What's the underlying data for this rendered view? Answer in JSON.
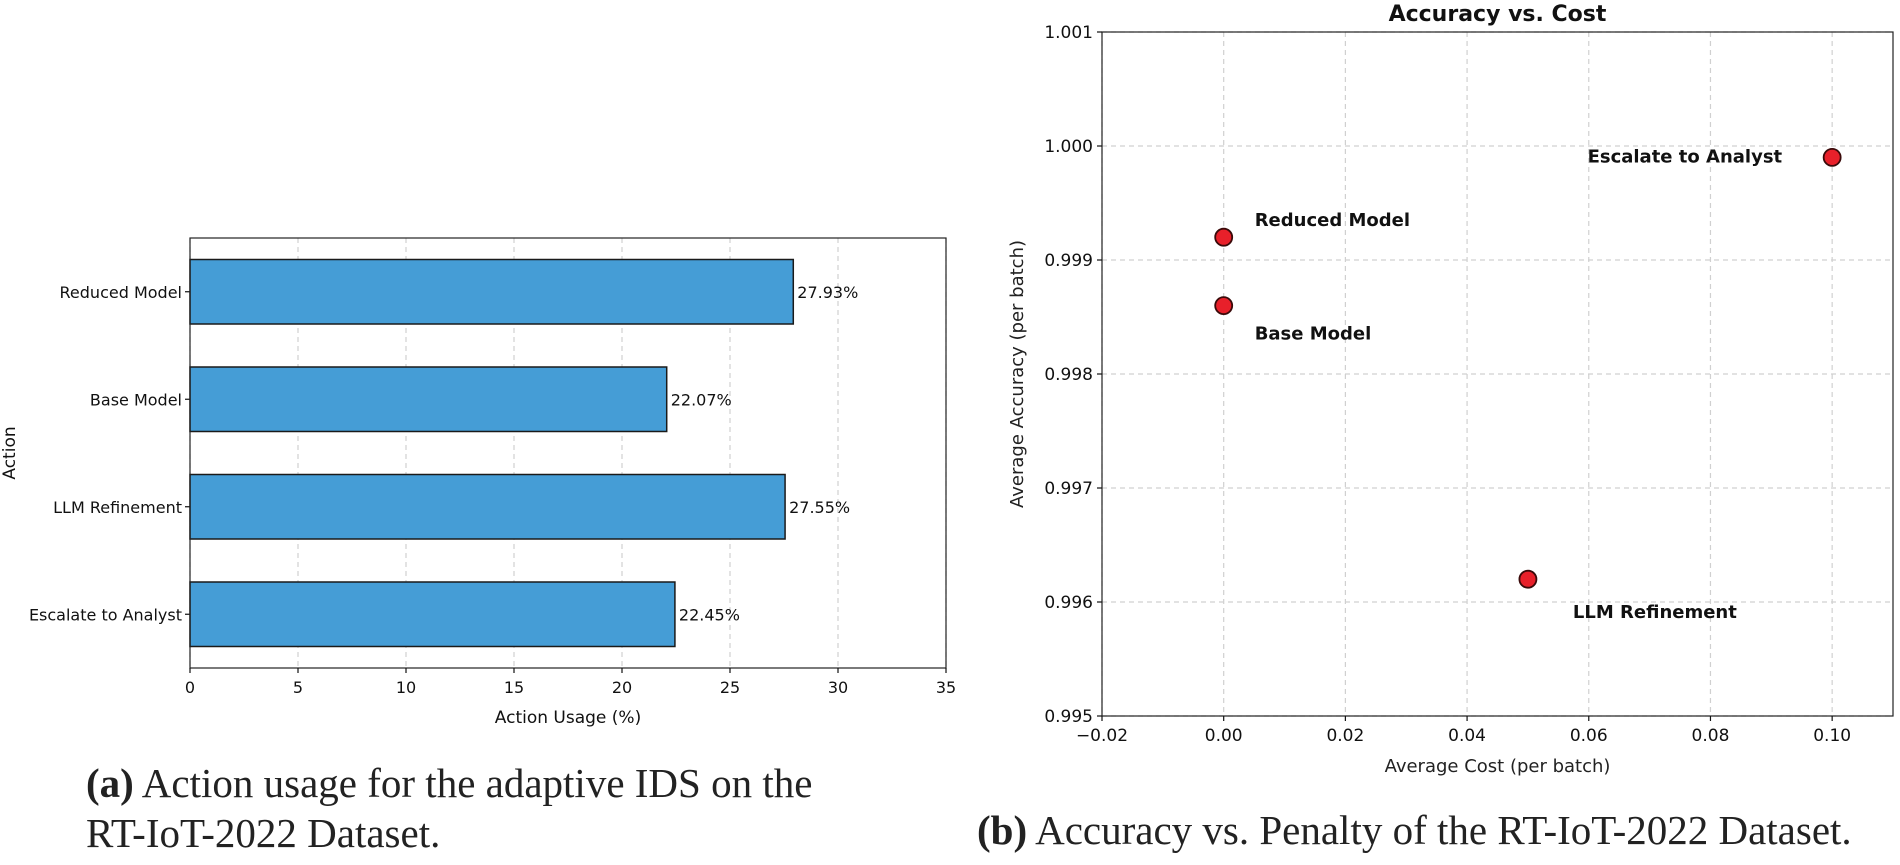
{
  "chart_data": [
    {
      "type": "bar",
      "orientation": "horizontal",
      "title": "",
      "xlabel": "Action Usage (%)",
      "ylabel": "Action",
      "categories": [
        "Reduced Model",
        "Base Model",
        "LLM Refinement",
        "Escalate to Analyst"
      ],
      "values": [
        27.93,
        22.07,
        27.55,
        22.45
      ],
      "value_labels": [
        "27.93%",
        "22.07%",
        "27.55%",
        "22.45%"
      ],
      "xlim": [
        0,
        35
      ],
      "xticks": [
        0,
        5,
        10,
        15,
        20,
        25,
        30,
        35
      ],
      "xtick_labels": [
        "0",
        "5",
        "10",
        "15",
        "20",
        "25",
        "30",
        "35"
      ],
      "grid": "x dashed",
      "bar_color": "#459dd6"
    },
    {
      "type": "scatter",
      "title": "Accuracy vs. Cost",
      "xlabel": "Average Cost (per batch)",
      "ylabel": "Average Accuracy (per batch)",
      "points": [
        {
          "label": "Reduced Model",
          "x": 0.0,
          "y": 0.9992
        },
        {
          "label": "Base Model",
          "x": 0.0,
          "y": 0.9986
        },
        {
          "label": "LLM Refinement",
          "x": 0.05,
          "y": 0.9962
        },
        {
          "label": "Escalate to Analyst",
          "x": 0.1,
          "y": 0.9999
        }
      ],
      "xlim": [
        -0.02,
        0.11
      ],
      "ylim": [
        0.995,
        1.001
      ],
      "xticks": [
        -0.02,
        0.0,
        0.02,
        0.04,
        0.06,
        0.08,
        0.1
      ],
      "xtick_labels": [
        "−0.02",
        "0.00",
        "0.02",
        "0.04",
        "0.06",
        "0.08",
        "0.10"
      ],
      "yticks": [
        0.995,
        0.996,
        0.997,
        0.998,
        0.999,
        1.0,
        1.001
      ],
      "ytick_labels": [
        "0.995",
        "0.996",
        "0.997",
        "0.998",
        "0.999",
        "1.000",
        "1.001"
      ],
      "grid": "both dashed",
      "marker_color": "#e8202a"
    }
  ],
  "captions": {
    "a_tag": "(a)",
    "a_text": " Action usage for the adaptive IDS on the",
    "a_text2": "RT-IoT-2022 Dataset.",
    "b_tag": "(b)",
    "b_text": " Accuracy vs. Penalty of the RT-IoT-2022 Dataset."
  }
}
